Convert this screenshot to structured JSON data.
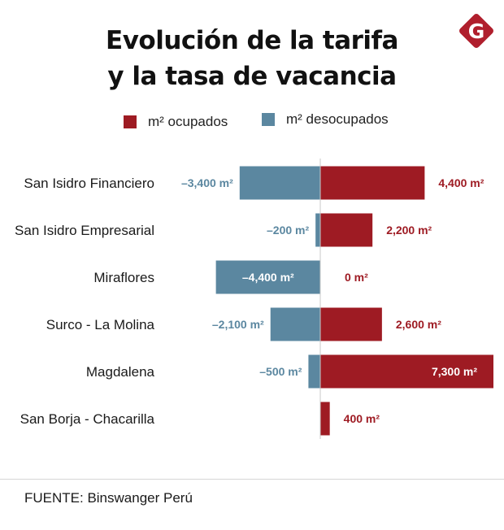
{
  "title_line1": "Evolución de la tarifa",
  "title_line2": "y la tasa de vacancia",
  "logo_letter": "G",
  "colors": {
    "ocupados": "#9e1b23",
    "desocupados": "#5b87a0",
    "axis": "#c8c8c8",
    "logo": "#b01f2d"
  },
  "legend": [
    {
      "label": "m² ocupados",
      "color": "#9e1b23"
    },
    {
      "label": "m² desocupados",
      "color": "#5b87a0"
    }
  ],
  "source": "FUENTE: Binswanger Perú",
  "chart_data": {
    "type": "bar",
    "orientation": "horizontal-diverging",
    "title": "Evolución de la tarifa y la tasa de vacancia",
    "categories": [
      "San Isidro Financiero",
      "San Isidro Empresarial",
      "Miraflores",
      "Surco - La Molina",
      "Magdalena",
      "San Borja - Chacarilla"
    ],
    "unit": "m²",
    "series": [
      {
        "name": "m² ocupados",
        "values": [
          4400,
          2200,
          0,
          2600,
          7300,
          400
        ],
        "labels": [
          "4,400 m²",
          "2,200 m²",
          "0 m²",
          "2,600 m²",
          "7,300 m²",
          "400 m²"
        ]
      },
      {
        "name": "m² desocupados",
        "values": [
          -3400,
          -200,
          -4400,
          -2100,
          -500,
          null
        ],
        "labels": [
          "-3,400 m²",
          "-200 m²",
          "-4,400 m²",
          "-2,100 m²",
          "-500 m²",
          null
        ]
      }
    ],
    "xlim": [
      -4600,
      7400
    ],
    "legend_position": "top-center",
    "grid": false
  }
}
